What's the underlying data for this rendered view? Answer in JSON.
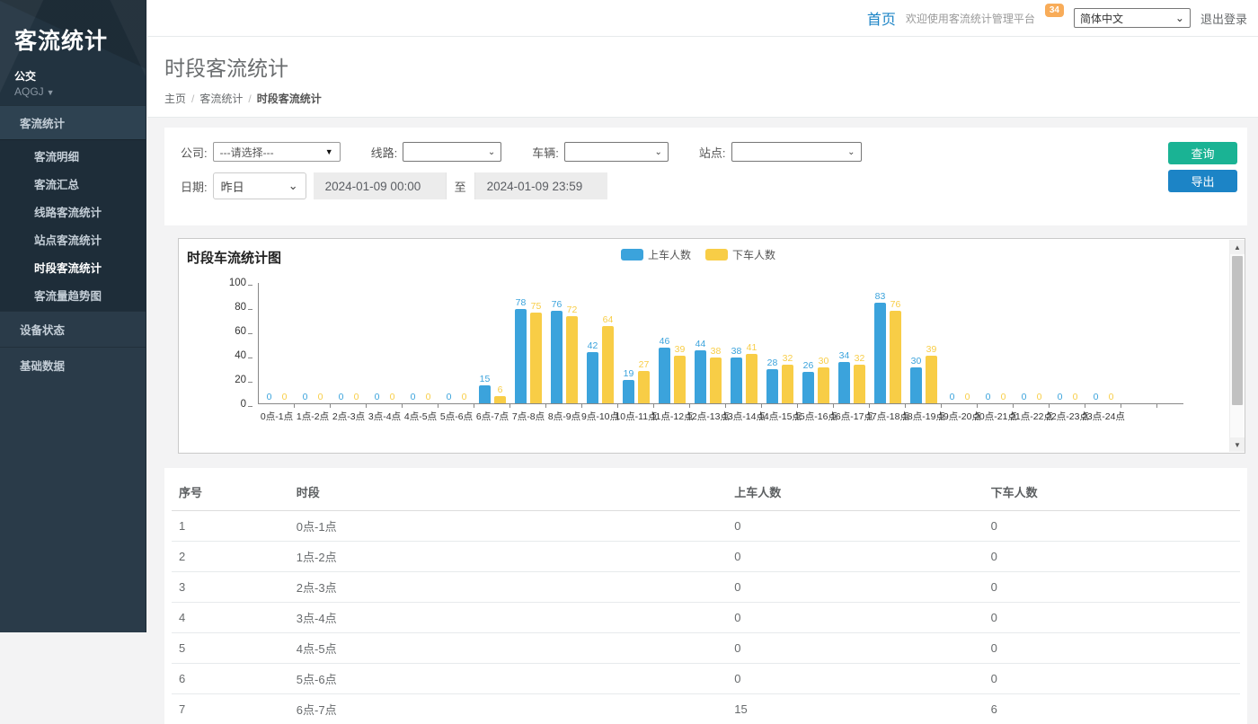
{
  "app": {
    "title": "客流统计",
    "org": "公交",
    "user": "AQGJ"
  },
  "topbar": {
    "home": "首页",
    "welcome": "欢迎使用客流统计管理平台",
    "badge": "34",
    "language": "简体中文",
    "logout": "退出登录"
  },
  "sidebar": {
    "items": [
      {
        "label": "客流统计",
        "type": "section"
      },
      {
        "label": "客流明细",
        "type": "sub"
      },
      {
        "label": "客流汇总",
        "type": "sub"
      },
      {
        "label": "线路客流统计",
        "type": "sub"
      },
      {
        "label": "站点客流统计",
        "type": "sub"
      },
      {
        "label": "时段客流统计",
        "type": "sub",
        "active": true
      },
      {
        "label": "客流量趋势图",
        "type": "sub"
      },
      {
        "label": "设备状态",
        "type": "item"
      },
      {
        "label": "基础数据",
        "type": "item"
      }
    ]
  },
  "page": {
    "title": "时段客流统计",
    "breadcrumb": [
      "主页",
      "客流统计",
      "时段客流统计"
    ],
    "breadcrumb_sep": "/"
  },
  "filters": {
    "company_label": "公司:",
    "company_value": "---请选择---",
    "line_label": "线路:",
    "line_value": "",
    "vehicle_label": "车辆:",
    "vehicle_value": "",
    "station_label": "站点:",
    "station_value": "",
    "date_label": "日期:",
    "date_preset": "昨日",
    "date_from": "2024-01-09 00:00",
    "date_to_sep": "至",
    "date_to": "2024-01-09 23:59",
    "query_button": "查询",
    "export_button": "导出"
  },
  "chart_data": {
    "type": "bar",
    "title": "时段车流统计图",
    "categories": [
      "0点-1点",
      "1点-2点",
      "2点-3点",
      "3点-4点",
      "4点-5点",
      "5点-6点",
      "6点-7点",
      "7点-8点",
      "8点-9点",
      "9点-10点",
      "10点-11点",
      "11点-12点",
      "12点-13点",
      "13点-14点",
      "14点-15点",
      "15点-16点",
      "16点-17点",
      "17点-18点",
      "18点-19点",
      "19点-20点",
      "20点-21点",
      "21点-22点",
      "22点-23点",
      "23点-24点"
    ],
    "series": [
      {
        "name": "上车人数",
        "color": "#3BA3DC",
        "values": [
          0,
          0,
          0,
          0,
          0,
          0,
          15,
          78,
          76,
          42,
          19,
          46,
          44,
          38,
          28,
          26,
          34,
          83,
          30,
          0,
          0,
          0,
          0,
          0
        ]
      },
      {
        "name": "下车人数",
        "color": "#F8CD46",
        "values": [
          0,
          0,
          0,
          0,
          0,
          0,
          6,
          75,
          72,
          64,
          27,
          39,
          38,
          41,
          32,
          30,
          32,
          76,
          39,
          0,
          0,
          0,
          0,
          0
        ]
      }
    ],
    "xlabel": "",
    "ylabel": "",
    "ylim": [
      0,
      100
    ],
    "yticks": [
      0,
      20,
      40,
      60,
      80,
      100
    ],
    "grid": false,
    "legend_position": "top-center"
  },
  "table": {
    "headers": [
      "序号",
      "时段",
      "上车人数",
      "下车人数"
    ],
    "rows": [
      [
        "1",
        "0点-1点",
        "0",
        "0"
      ],
      [
        "2",
        "1点-2点",
        "0",
        "0"
      ],
      [
        "3",
        "2点-3点",
        "0",
        "0"
      ],
      [
        "4",
        "3点-4点",
        "0",
        "0"
      ],
      [
        "5",
        "4点-5点",
        "0",
        "0"
      ],
      [
        "6",
        "5点-6点",
        "0",
        "0"
      ],
      [
        "7",
        "6点-7点",
        "15",
        "6"
      ]
    ]
  },
  "colors": {
    "accent_blue": "#1c84c6",
    "accent_green": "#1ab394",
    "badge_orange": "#f8ac59",
    "bar_blue": "#3BA3DC",
    "bar_yellow": "#F8CD46",
    "sidebar_bg": "#2a3b49"
  }
}
